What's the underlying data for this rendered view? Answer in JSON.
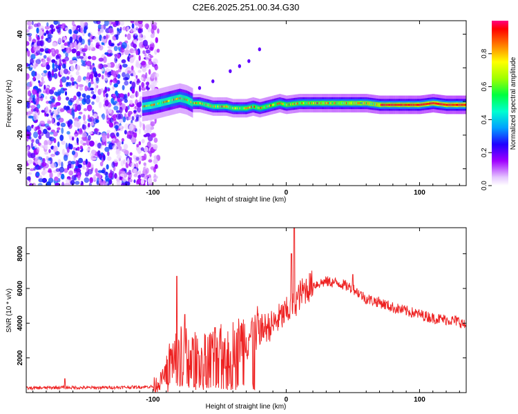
{
  "title": "C2E6.2025.251.00.34.G30",
  "chart_data": [
    {
      "type": "heatmap",
      "panel": "spectrogram",
      "xlabel": "Height of straight line (km)",
      "ylabel": "Frequency (Hz)",
      "xlim": [
        -195,
        135
      ],
      "ylim": [
        -50,
        48
      ],
      "xticks": [
        -100,
        0,
        100
      ],
      "yticks": [
        -40,
        -20,
        0,
        20,
        40
      ],
      "xtick_labels": [
        "-100",
        "0",
        "100"
      ],
      "ytick_labels": [
        "-40",
        "-20",
        "0",
        "20",
        "40"
      ],
      "noise_region_x": [
        -195,
        -100
      ],
      "signal_start_x": -108,
      "signal_ridge": {
        "x": [
          -108,
          -100,
          -95,
          -90,
          -85,
          -80,
          -75,
          -70,
          -65,
          -60,
          -55,
          -50,
          -45,
          -40,
          -35,
          -30,
          -25,
          -20,
          -15,
          -10,
          -5,
          0,
          10,
          20,
          30,
          40,
          50,
          60,
          70,
          80,
          90,
          100,
          110,
          120,
          135
        ],
        "y": [
          -3,
          -2,
          -1,
          0,
          1,
          2,
          1,
          -1,
          -1,
          -2,
          -3,
          -3,
          -3,
          -4,
          -4,
          -4,
          -3,
          -4,
          -3,
          -2,
          -1,
          -2,
          -1,
          -1,
          -1,
          -1,
          -1,
          -1,
          -2,
          -2,
          -2,
          -2,
          -1,
          -2,
          -2
        ]
      },
      "colorbar": {
        "label": "Normalized spectral amplitude",
        "range": [
          0.0,
          1.0
        ],
        "ticks": [
          0.0,
          0.2,
          0.4,
          0.6,
          0.8
        ],
        "tick_labels": [
          "0.0",
          "0.2",
          "0.4",
          "0.6",
          "0.8"
        ]
      }
    },
    {
      "type": "line",
      "panel": "snr",
      "xlabel": "Height of straight line (km)",
      "ylabel": "SNR (10 * v/v)",
      "xlim": [
        -195,
        135
      ],
      "ylim": [
        0,
        9500
      ],
      "xticks": [
        -100,
        0,
        100
      ],
      "yticks": [
        2000,
        4000,
        6000,
        8000
      ],
      "xtick_labels": [
        "-100",
        "0",
        "100"
      ],
      "ytick_labels": [
        "2000",
        "4000",
        "6000",
        "8000"
      ],
      "color": "#ee2222",
      "series": [
        {
          "name": "SNR",
          "x": [
            -195,
            -170,
            -150,
            -130,
            -110,
            -100,
            -95,
            -90,
            -85,
            -80,
            -75,
            -70,
            -60,
            -50,
            -40,
            -30,
            -20,
            -10,
            -5,
            0,
            5,
            10,
            15,
            20,
            25,
            30,
            40,
            50,
            60,
            70,
            80,
            90,
            100,
            110,
            120,
            130,
            135
          ],
          "values": [
            250,
            300,
            280,
            300,
            320,
            350,
            600,
            1200,
            2000,
            2400,
            2300,
            2000,
            2200,
            2400,
            2800,
            3200,
            3600,
            3900,
            4300,
            4600,
            5000,
            5600,
            6000,
            6200,
            6300,
            6400,
            6300,
            6000,
            5400,
            5200,
            4900,
            4700,
            4500,
            4300,
            4200,
            4100,
            3800
          ]
        }
      ],
      "spikes": [
        {
          "x": -166,
          "value": 800
        },
        {
          "x": -82,
          "value": 6700
        },
        {
          "x": -76,
          "value": 4500
        },
        {
          "x": 6,
          "value": 9500
        },
        {
          "x": 4,
          "value": 8000
        },
        {
          "x": 50,
          "value": 6800
        }
      ]
    }
  ]
}
